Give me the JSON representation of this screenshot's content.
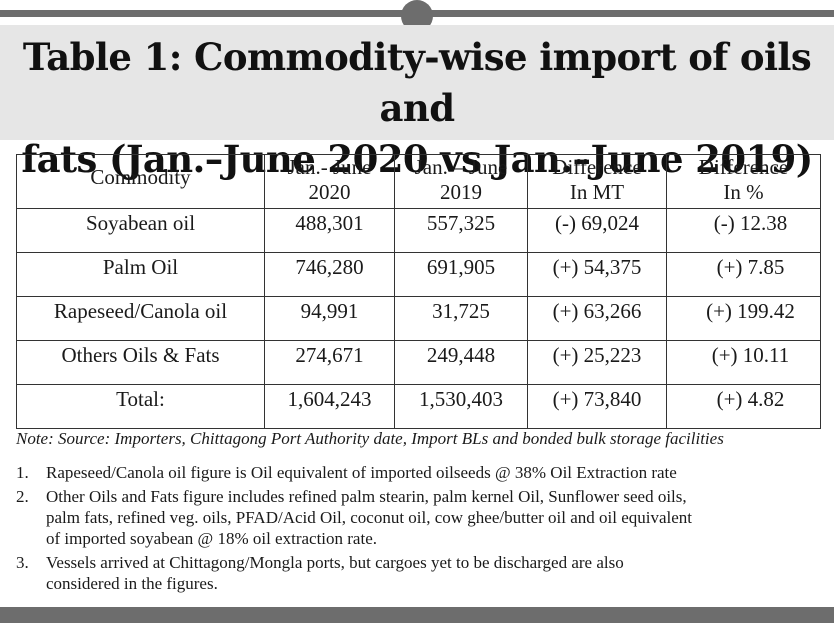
{
  "title": {
    "line1": "Table 1: Commodity-wise import of oils and",
    "line2": "fats (Jan.–June 2020 vs Jan.–June 2019)"
  },
  "table": {
    "headers": [
      [
        "Commodity"
      ],
      [
        "Jan.- June",
        "2020"
      ],
      [
        "Jan. – June",
        "2019"
      ],
      [
        "Difference",
        "In MT"
      ],
      [
        "Difference",
        "In %"
      ]
    ],
    "rows": [
      [
        "Soyabean oil",
        "488,301",
        "557,325",
        "(-) 69,024",
        "(-) 12.38"
      ],
      [
        "Palm Oil",
        "746,280",
        "691,905",
        "(+) 54,375",
        "(+) 7.85"
      ],
      [
        "Rapeseed/Canola oil",
        "94,991",
        "31,725",
        "(+) 63,266",
        "(+) 199.42"
      ],
      [
        "Others Oils & Fats",
        "274,671",
        "249,448",
        "(+) 25,223",
        "(+) 10.11"
      ],
      [
        "Total:",
        "1,604,243",
        "1,530,403",
        "(+) 73,840",
        "(+) 4.82"
      ]
    ]
  },
  "note": "Note: Source: Importers, Chittagong Port Authority date, Import BLs and bonded bulk storage facilities",
  "footnotes": [
    {
      "num": "1.",
      "lines": [
        "Rapeseed/Canola oil figure is Oil equivalent of imported oilseeds @ 38% Oil Extraction rate"
      ]
    },
    {
      "num": "2.",
      "lines": [
        "Other Oils and Fats figure includes refined palm stearin, palm kernel Oil, Sunflower seed oils,",
        "palm fats, refined veg. oils, PFAD/Acid Oil, coconut oil, cow ghee/butter oil and oil equivalent",
        "of imported soyabean @ 18% oil extraction rate."
      ]
    },
    {
      "num": "3.",
      "lines": [
        "Vessels arrived at Chittagong/Mongla ports, but cargoes yet to be discharged are also",
        "considered in the figures."
      ]
    }
  ]
}
